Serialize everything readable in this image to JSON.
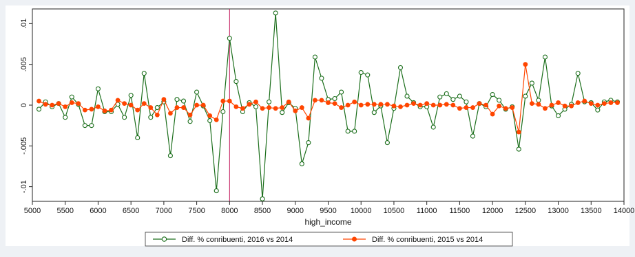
{
  "chart_data": {
    "type": "line",
    "title": "",
    "xlabel": "high_income",
    "ylabel": "",
    "xlim": [
      5000,
      14000
    ],
    "ylim": [
      -0.0118,
      0.0118
    ],
    "x_ticks": [
      5000,
      5500,
      6000,
      6500,
      7000,
      7500,
      8000,
      8500,
      9000,
      9500,
      10000,
      10500,
      11000,
      11500,
      12000,
      12500,
      13000,
      13500,
      14000
    ],
    "x_tick_labels": [
      "5000",
      "5500",
      "6000",
      "6500",
      "7000",
      "7500",
      "8000",
      "8500",
      "9000",
      "9500",
      "10000",
      "10500",
      "11000",
      "11500",
      "12000",
      "12500",
      "13000",
      "13500",
      "14000"
    ],
    "y_ticks": [
      -0.01,
      -0.005,
      0,
      0.005,
      0.01
    ],
    "y_tick_labels": [
      "-.01",
      "-.005",
      "0",
      ".005",
      ".01"
    ],
    "grid": false,
    "legend_position": "bottom",
    "reference_line": {
      "x": 8000,
      "color": "#c2185b"
    },
    "x": [
      5100,
      5200,
      5300,
      5400,
      5500,
      5600,
      5700,
      5800,
      5900,
      6000,
      6100,
      6200,
      6300,
      6400,
      6500,
      6600,
      6700,
      6800,
      6900,
      7000,
      7100,
      7200,
      7300,
      7400,
      7500,
      7600,
      7700,
      7800,
      7900,
      8000,
      8100,
      8200,
      8300,
      8400,
      8500,
      8600,
      8700,
      8800,
      8900,
      9000,
      9100,
      9200,
      9300,
      9400,
      9500,
      9600,
      9700,
      9800,
      9900,
      10000,
      10100,
      10200,
      10300,
      10400,
      10500,
      10600,
      10700,
      10800,
      10900,
      11000,
      11100,
      11200,
      11300,
      11400,
      11500,
      11600,
      11700,
      11800,
      11900,
      12000,
      12100,
      12200,
      12300,
      12400,
      12500,
      12600,
      12700,
      12800,
      12900,
      13000,
      13100,
      13200,
      13300,
      13400,
      13500,
      13600,
      13700,
      13800,
      13900
    ],
    "series": [
      {
        "name": "Diff. % conribuenti, 2016 vs 2014",
        "color": "#1b6e1b",
        "marker": "hollow-circle",
        "values": [
          -0.0005,
          0.0004,
          -0.0002,
          0.0002,
          -0.0015,
          0.001,
          0.0001,
          -0.0025,
          -0.0025,
          0.002,
          -0.0008,
          -0.0008,
          0.0001,
          -0.0015,
          0.0012,
          -0.004,
          0.0039,
          -0.0015,
          -0.0003,
          0.0004,
          -0.0062,
          0.0007,
          0.0005,
          -0.002,
          0.0016,
          -0.0001,
          -0.0019,
          -0.0105,
          -0.0008,
          0.0082,
          0.0029,
          -0.0008,
          0.0003,
          -0.0002,
          -0.0115,
          0.0004,
          0.0113,
          -0.0009,
          0.0003,
          -0.0004,
          -0.0072,
          -0.0046,
          0.0059,
          0.0033,
          0.0007,
          0.0008,
          0.0016,
          -0.0032,
          -0.0032,
          0.004,
          0.0037,
          -0.0009,
          -0.0001,
          -0.0046,
          -0.0004,
          0.0046,
          0.0011,
          0.0003,
          -0.0002,
          -0.0002,
          -0.0027,
          0.001,
          0.0014,
          0.0007,
          0.0011,
          0.0004,
          -0.0038,
          0.0002,
          -0.0002,
          0.0013,
          0.0006,
          -0.0005,
          -0.0002,
          -0.0054,
          0.0011,
          0.0027,
          0.0006,
          0.0059,
          -0.0001,
          -0.0013,
          -0.0005,
          0.0001,
          0.0039,
          0.0004,
          0.0003,
          -0.0006,
          0.0004,
          0.0006,
          0.0004
        ]
      },
      {
        "name": "Diff. % conribuenti, 2015 vs 2014",
        "color": "#ff4500",
        "marker": "filled-circle",
        "values": [
          0.0005,
          0.0001,
          0.0,
          0.0002,
          -0.0002,
          0.0003,
          0.0002,
          -0.0006,
          -0.0005,
          -0.0002,
          -0.0007,
          -0.0006,
          0.0006,
          0.0002,
          0.0,
          -0.0006,
          0.0002,
          -0.0003,
          -0.0012,
          0.0007,
          -0.001,
          -0.0003,
          -0.0003,
          -0.0012,
          0.0,
          0.0,
          -0.0013,
          -0.0018,
          0.0005,
          0.0005,
          -0.0002,
          -0.0004,
          0.0001,
          0.0004,
          -0.0004,
          -0.0003,
          -0.0004,
          -0.0003,
          0.0004,
          -0.0007,
          -0.0003,
          -0.0016,
          0.0006,
          0.0006,
          0.0003,
          0.0002,
          -0.0003,
          0.0,
          0.0004,
          0.0,
          0.0001,
          0.0001,
          0.0001,
          0.0001,
          -0.0001,
          -0.0002,
          0.0,
          0.0002,
          0.0,
          0.0002,
          0.0,
          0.0,
          0.0001,
          0.0,
          -0.0004,
          -0.0003,
          -0.0003,
          0.0002,
          0.0,
          -0.0011,
          -0.0001,
          -0.0004,
          -0.0003,
          -0.0033,
          0.005,
          0.0002,
          0.0001,
          -0.0004,
          0.0,
          0.0003,
          -0.0001,
          -0.0001,
          0.0003,
          0.0005,
          0.0002,
          0.0,
          0.0002,
          0.0003,
          0.0003
        ]
      }
    ]
  }
}
